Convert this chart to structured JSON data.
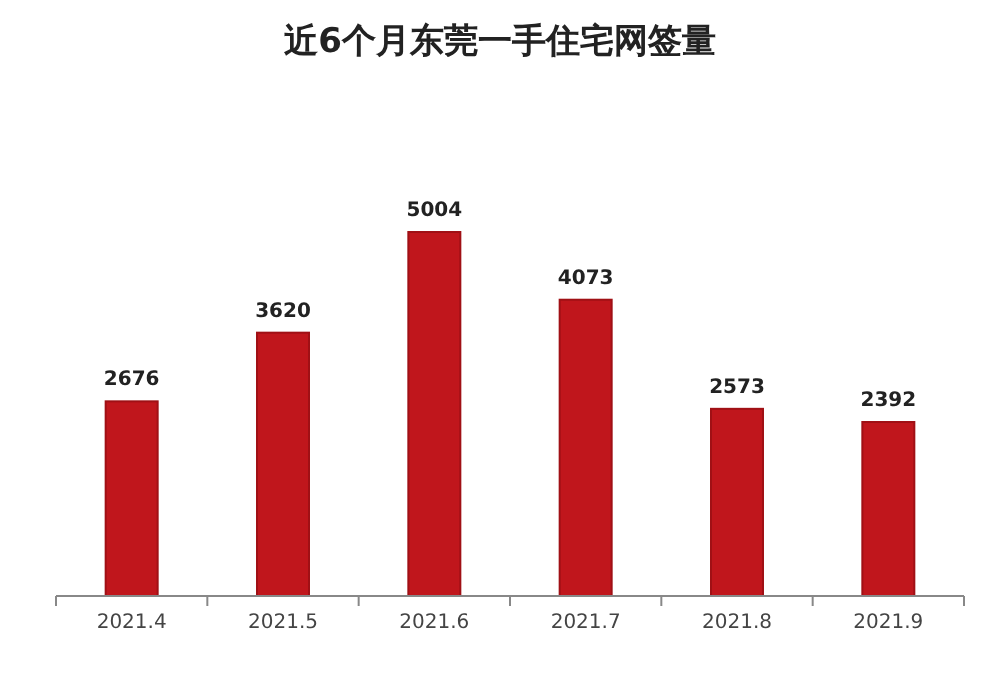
{
  "chart_data": {
    "type": "bar",
    "title": "近6个月东莞一手住宅网签量",
    "categories": [
      "2021.4",
      "2021.5",
      "2021.6",
      "2021.7",
      "2021.8",
      "2021.9"
    ],
    "values": [
      2676,
      3620,
      5004,
      4073,
      2573,
      2392
    ],
    "color": "#c0161c",
    "data_labels": true
  }
}
